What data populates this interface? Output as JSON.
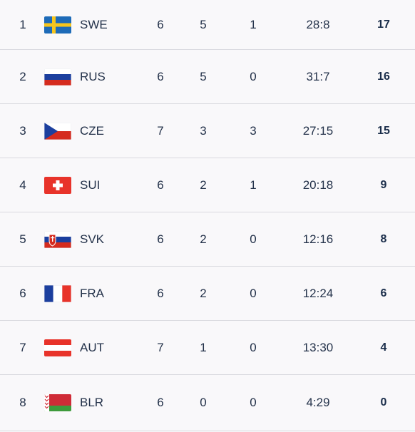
{
  "standings": {
    "rows": [
      {
        "rank": "1",
        "team": "SWE",
        "flag": "sweden-flag-icon",
        "gp": "6",
        "w": "5",
        "otw": "1",
        "goals": "28:8",
        "pts": "17"
      },
      {
        "rank": "2",
        "team": "RUS",
        "flag": "russia-flag-icon",
        "gp": "6",
        "w": "5",
        "otw": "0",
        "goals": "31:7",
        "pts": "16"
      },
      {
        "rank": "3",
        "team": "CZE",
        "flag": "czech-flag-icon",
        "gp": "7",
        "w": "3",
        "otw": "3",
        "goals": "27:15",
        "pts": "15"
      },
      {
        "rank": "4",
        "team": "SUI",
        "flag": "switzerland-flag-icon",
        "gp": "6",
        "w": "2",
        "otw": "1",
        "goals": "20:18",
        "pts": "9"
      },
      {
        "rank": "5",
        "team": "SVK",
        "flag": "slovakia-flag-icon",
        "gp": "6",
        "w": "2",
        "otw": "0",
        "goals": "12:16",
        "pts": "8"
      },
      {
        "rank": "6",
        "team": "FRA",
        "flag": "france-flag-icon",
        "gp": "6",
        "w": "2",
        "otw": "0",
        "goals": "12:24",
        "pts": "6"
      },
      {
        "rank": "7",
        "team": "AUT",
        "flag": "austria-flag-icon",
        "gp": "7",
        "w": "1",
        "otw": "0",
        "goals": "13:30",
        "pts": "4"
      },
      {
        "rank": "8",
        "team": "BLR",
        "flag": "belarus-flag-icon",
        "gp": "6",
        "w": "0",
        "otw": "0",
        "goals": "4:29",
        "pts": "0"
      }
    ]
  },
  "colors": {
    "background": "#f9f8fa",
    "divider": "#d9d9df",
    "text": "#24324a"
  }
}
